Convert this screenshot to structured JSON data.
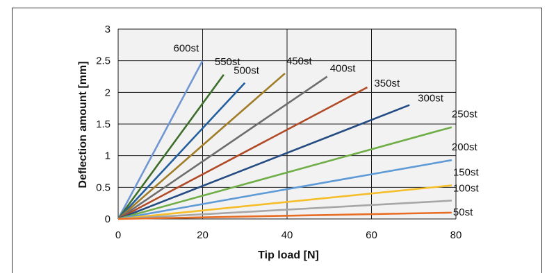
{
  "chart_data": {
    "type": "line",
    "xlabel": "Tip load [N]",
    "ylabel": "Deflection amount [mm]",
    "xlim": [
      0,
      80
    ],
    "ylim": [
      0,
      3
    ],
    "xticks": [
      "0",
      "20",
      "40",
      "60",
      "80"
    ],
    "yticks": [
      "0",
      "0.5",
      "1",
      "1.5",
      "2",
      "2.5",
      "3"
    ],
    "grid": true,
    "plot_background": "#f2f2f2",
    "series": [
      {
        "name": "600st",
        "color": "#6f96d2",
        "x": [
          0,
          20
        ],
        "y": [
          0,
          2.5
        ]
      },
      {
        "name": "550st",
        "color": "#3c6e2a",
        "x": [
          0,
          25
        ],
        "y": [
          0,
          2.28
        ]
      },
      {
        "name": "500st",
        "color": "#225e9e",
        "x": [
          0,
          30
        ],
        "y": [
          0,
          2.15
        ]
      },
      {
        "name": "450st",
        "color": "#a07c27",
        "x": [
          0,
          39.5
        ],
        "y": [
          0,
          2.3
        ]
      },
      {
        "name": "400st",
        "color": "#6d6d6d",
        "x": [
          0,
          49.5
        ],
        "y": [
          0,
          2.25
        ]
      },
      {
        "name": "350st",
        "color": "#b04a26",
        "x": [
          0,
          59
        ],
        "y": [
          0,
          2.08
        ]
      },
      {
        "name": "300st",
        "color": "#244b82",
        "x": [
          0,
          69
        ],
        "y": [
          0,
          1.8
        ]
      },
      {
        "name": "250st",
        "color": "#6fad47",
        "x": [
          0,
          79
        ],
        "y": [
          0,
          1.45
        ]
      },
      {
        "name": "200st",
        "color": "#5e9bd6",
        "x": [
          0,
          79
        ],
        "y": [
          0,
          0.93
        ]
      },
      {
        "name": "150st",
        "color": "#f5bd27",
        "x": [
          0,
          79
        ],
        "y": [
          0,
          0.53
        ]
      },
      {
        "name": "100st",
        "color": "#a6a6a6",
        "x": [
          0,
          79
        ],
        "y": [
          0,
          0.29
        ]
      },
      {
        "name": "50st",
        "color": "#e76c24",
        "x": [
          0,
          79
        ],
        "y": [
          0,
          0.1
        ]
      }
    ]
  }
}
